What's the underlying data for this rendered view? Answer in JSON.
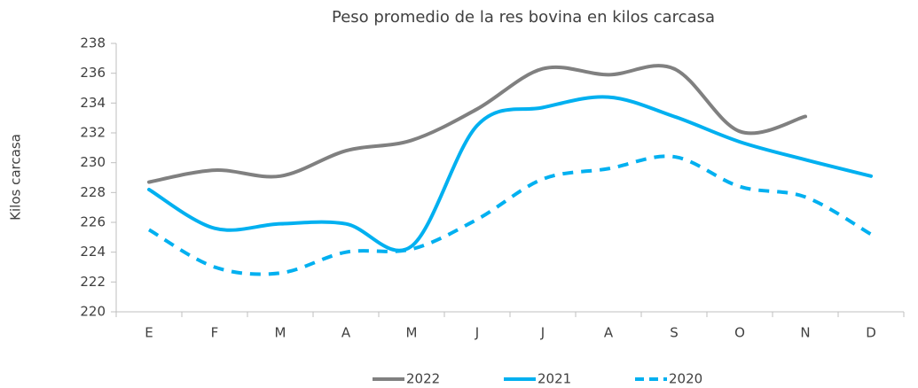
{
  "chart_data": {
    "type": "line",
    "title": "Peso promedio de la res bovina en kilos carcasa",
    "y_label": "Kilos carcasa",
    "categories": [
      "E",
      "F",
      "M",
      "A",
      "M",
      "J",
      "J",
      "A",
      "S",
      "O",
      "N",
      "D"
    ],
    "series": [
      {
        "name": "2022",
        "color": "#808080",
        "dashed": false,
        "values": [
          228.7,
          229.5,
          229.1,
          230.8,
          231.5,
          233.6,
          236.3,
          235.9,
          236.3,
          232.1,
          233.1,
          null
        ]
      },
      {
        "name": "2021",
        "color": "#00b0f0",
        "dashed": false,
        "values": [
          228.2,
          225.6,
          225.9,
          225.9,
          224.4,
          232.5,
          233.7,
          234.4,
          233.1,
          231.4,
          230.2,
          229.1
        ]
      },
      {
        "name": "2020",
        "color": "#00b0f0",
        "dashed": true,
        "values": [
          225.5,
          223.0,
          222.6,
          224.0,
          224.2,
          226.2,
          228.9,
          229.6,
          230.4,
          228.4,
          227.7,
          225.2
        ]
      }
    ],
    "ylim": [
      220,
      238
    ],
    "yticks": [
      220,
      222,
      224,
      226,
      228,
      230,
      232,
      234,
      236,
      238
    ],
    "grid": false,
    "legend": "bottom",
    "smooth": true
  }
}
